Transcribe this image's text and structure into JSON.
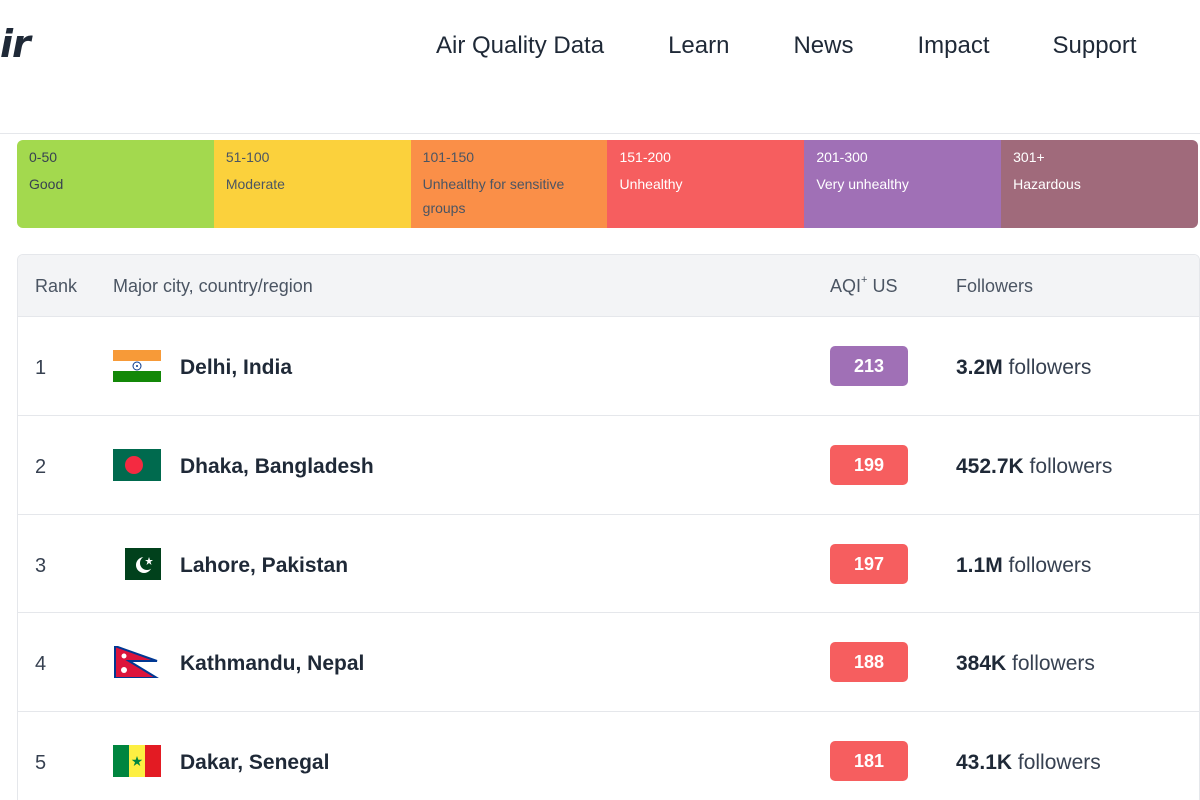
{
  "header": {
    "logo_text": "ir",
    "nav": [
      "Air Quality Data",
      "Learn",
      "News",
      "Impact",
      "Support"
    ]
  },
  "scale": [
    {
      "range": "0-50",
      "label": "Good",
      "color": "#a3d94e",
      "text_color": "#374151"
    },
    {
      "range": "51-100",
      "label": "Moderate",
      "color": "#fbd13c",
      "text_color": "#4b5563"
    },
    {
      "range": "101-150",
      "label": "Unhealthy for sensitive groups",
      "color": "#fa8f48",
      "text_color": "#4b5563"
    },
    {
      "range": "151-200",
      "label": "Unhealthy",
      "color": "#f65e5f",
      "text_color": "#ffffff"
    },
    {
      "range": "201-300",
      "label": "Very unhealthy",
      "color": "#a070b6",
      "text_color": "#ffffff"
    },
    {
      "range": "301+",
      "label": "Hazardous",
      "color": "#a06a7b",
      "text_color": "#ffffff"
    }
  ],
  "table": {
    "headers": {
      "rank": "Rank",
      "city": "Major city, country/region",
      "aqi": "AQI",
      "aqi_sup": "+",
      "aqi_suffix": " US",
      "followers": "Followers"
    },
    "rows": [
      {
        "rank": "1",
        "city": "Delhi, India",
        "flag": "india-flag-icon",
        "aqi": "213",
        "aqi_color": "#a070b6",
        "followers_count": "3.2M",
        "followers_suffix": " followers"
      },
      {
        "rank": "2",
        "city": "Dhaka, Bangladesh",
        "flag": "bangladesh-flag-icon",
        "aqi": "199",
        "aqi_color": "#f65e5f",
        "followers_count": "452.7K",
        "followers_suffix": " followers"
      },
      {
        "rank": "3",
        "city": "Lahore, Pakistan",
        "flag": "pakistan-flag-icon",
        "aqi": "197",
        "aqi_color": "#f65e5f",
        "followers_count": "1.1M",
        "followers_suffix": " followers"
      },
      {
        "rank": "4",
        "city": "Kathmandu, Nepal",
        "flag": "nepal-flag-icon",
        "aqi": "188",
        "aqi_color": "#f65e5f",
        "followers_count": "384K",
        "followers_suffix": " followers"
      },
      {
        "rank": "5",
        "city": "Dakar, Senegal",
        "flag": "senegal-flag-icon",
        "aqi": "181",
        "aqi_color": "#f65e5f",
        "followers_count": "43.1K",
        "followers_suffix": " followers"
      }
    ]
  }
}
